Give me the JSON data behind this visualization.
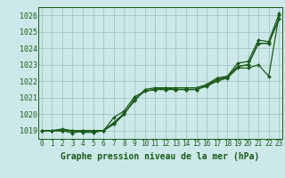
{
  "series": [
    {
      "x": [
        0,
        1,
        2,
        3,
        4,
        5,
        6,
        7,
        8,
        9,
        10,
        11,
        12,
        13,
        14,
        15,
        16,
        17,
        18,
        19,
        20,
        21,
        22,
        23
      ],
      "y": [
        1019.0,
        1019.0,
        1019.0,
        1018.85,
        1019.0,
        1018.9,
        1019.0,
        1019.5,
        1020.05,
        1020.8,
        1021.5,
        1021.6,
        1021.6,
        1021.6,
        1021.6,
        1021.6,
        1021.8,
        1022.2,
        1022.3,
        1023.1,
        1023.2,
        1024.5,
        1024.4,
        1026.1
      ]
    },
    {
      "x": [
        0,
        1,
        2,
        3,
        4,
        5,
        6,
        7,
        8,
        9,
        10,
        11,
        12,
        13,
        14,
        15,
        16,
        17,
        18,
        19,
        20,
        21,
        22,
        23
      ],
      "y": [
        1019.0,
        1019.0,
        1019.0,
        1019.0,
        1019.0,
        1019.0,
        1019.0,
        1019.4,
        1020.0,
        1020.9,
        1021.4,
        1021.5,
        1021.5,
        1021.5,
        1021.5,
        1021.5,
        1021.75,
        1022.1,
        1022.25,
        1022.9,
        1023.0,
        1024.3,
        1024.3,
        1025.8
      ]
    },
    {
      "x": [
        0,
        1,
        2,
        3,
        4,
        5,
        6,
        7,
        8,
        9,
        10,
        11,
        12,
        13,
        14,
        15,
        16,
        17,
        18,
        19,
        20,
        21,
        22,
        23
      ],
      "y": [
        1019.0,
        1019.0,
        1019.0,
        1019.0,
        1018.9,
        1018.9,
        1019.0,
        1019.8,
        1020.2,
        1021.05,
        1021.4,
        1021.5,
        1021.6,
        1021.5,
        1021.5,
        1021.5,
        1021.7,
        1022.0,
        1022.2,
        1022.8,
        1022.8,
        1023.0,
        1022.3,
        1026.0
      ]
    },
    {
      "x": [
        0,
        1,
        2,
        3,
        4,
        5,
        6,
        7,
        8,
        9,
        10,
        11,
        12,
        13,
        14,
        15,
        16,
        17,
        18,
        19,
        20,
        21,
        22,
        23
      ],
      "y": [
        1019.0,
        1019.0,
        1019.1,
        1019.0,
        1019.0,
        1019.0,
        1019.0,
        1019.4,
        1020.0,
        1020.9,
        1021.4,
        1021.5,
        1021.5,
        1021.5,
        1021.5,
        1021.5,
        1021.75,
        1022.1,
        1022.25,
        1022.9,
        1023.0,
        1024.3,
        1024.3,
        1025.8
      ]
    }
  ],
  "line_color": "#1a5c1a",
  "marker": "D",
  "marker_size": 2.0,
  "line_width": 0.9,
  "bg_color": "#cce8e8",
  "grid_color": "#9bbfbf",
  "grid_lw": 0.5,
  "title": "Graphe pression niveau de la mer (hPa)",
  "title_fontsize": 7.0,
  "tick_fontsize": 5.5,
  "ytick_fontsize": 6.0,
  "xlabel_ticks": [
    0,
    1,
    2,
    3,
    4,
    5,
    6,
    7,
    8,
    9,
    10,
    11,
    12,
    13,
    14,
    15,
    16,
    17,
    18,
    19,
    20,
    21,
    22,
    23
  ],
  "yticks": [
    1019,
    1020,
    1021,
    1022,
    1023,
    1024,
    1025,
    1026
  ],
  "ylim": [
    1018.5,
    1026.5
  ],
  "xlim": [
    -0.3,
    23.3
  ]
}
